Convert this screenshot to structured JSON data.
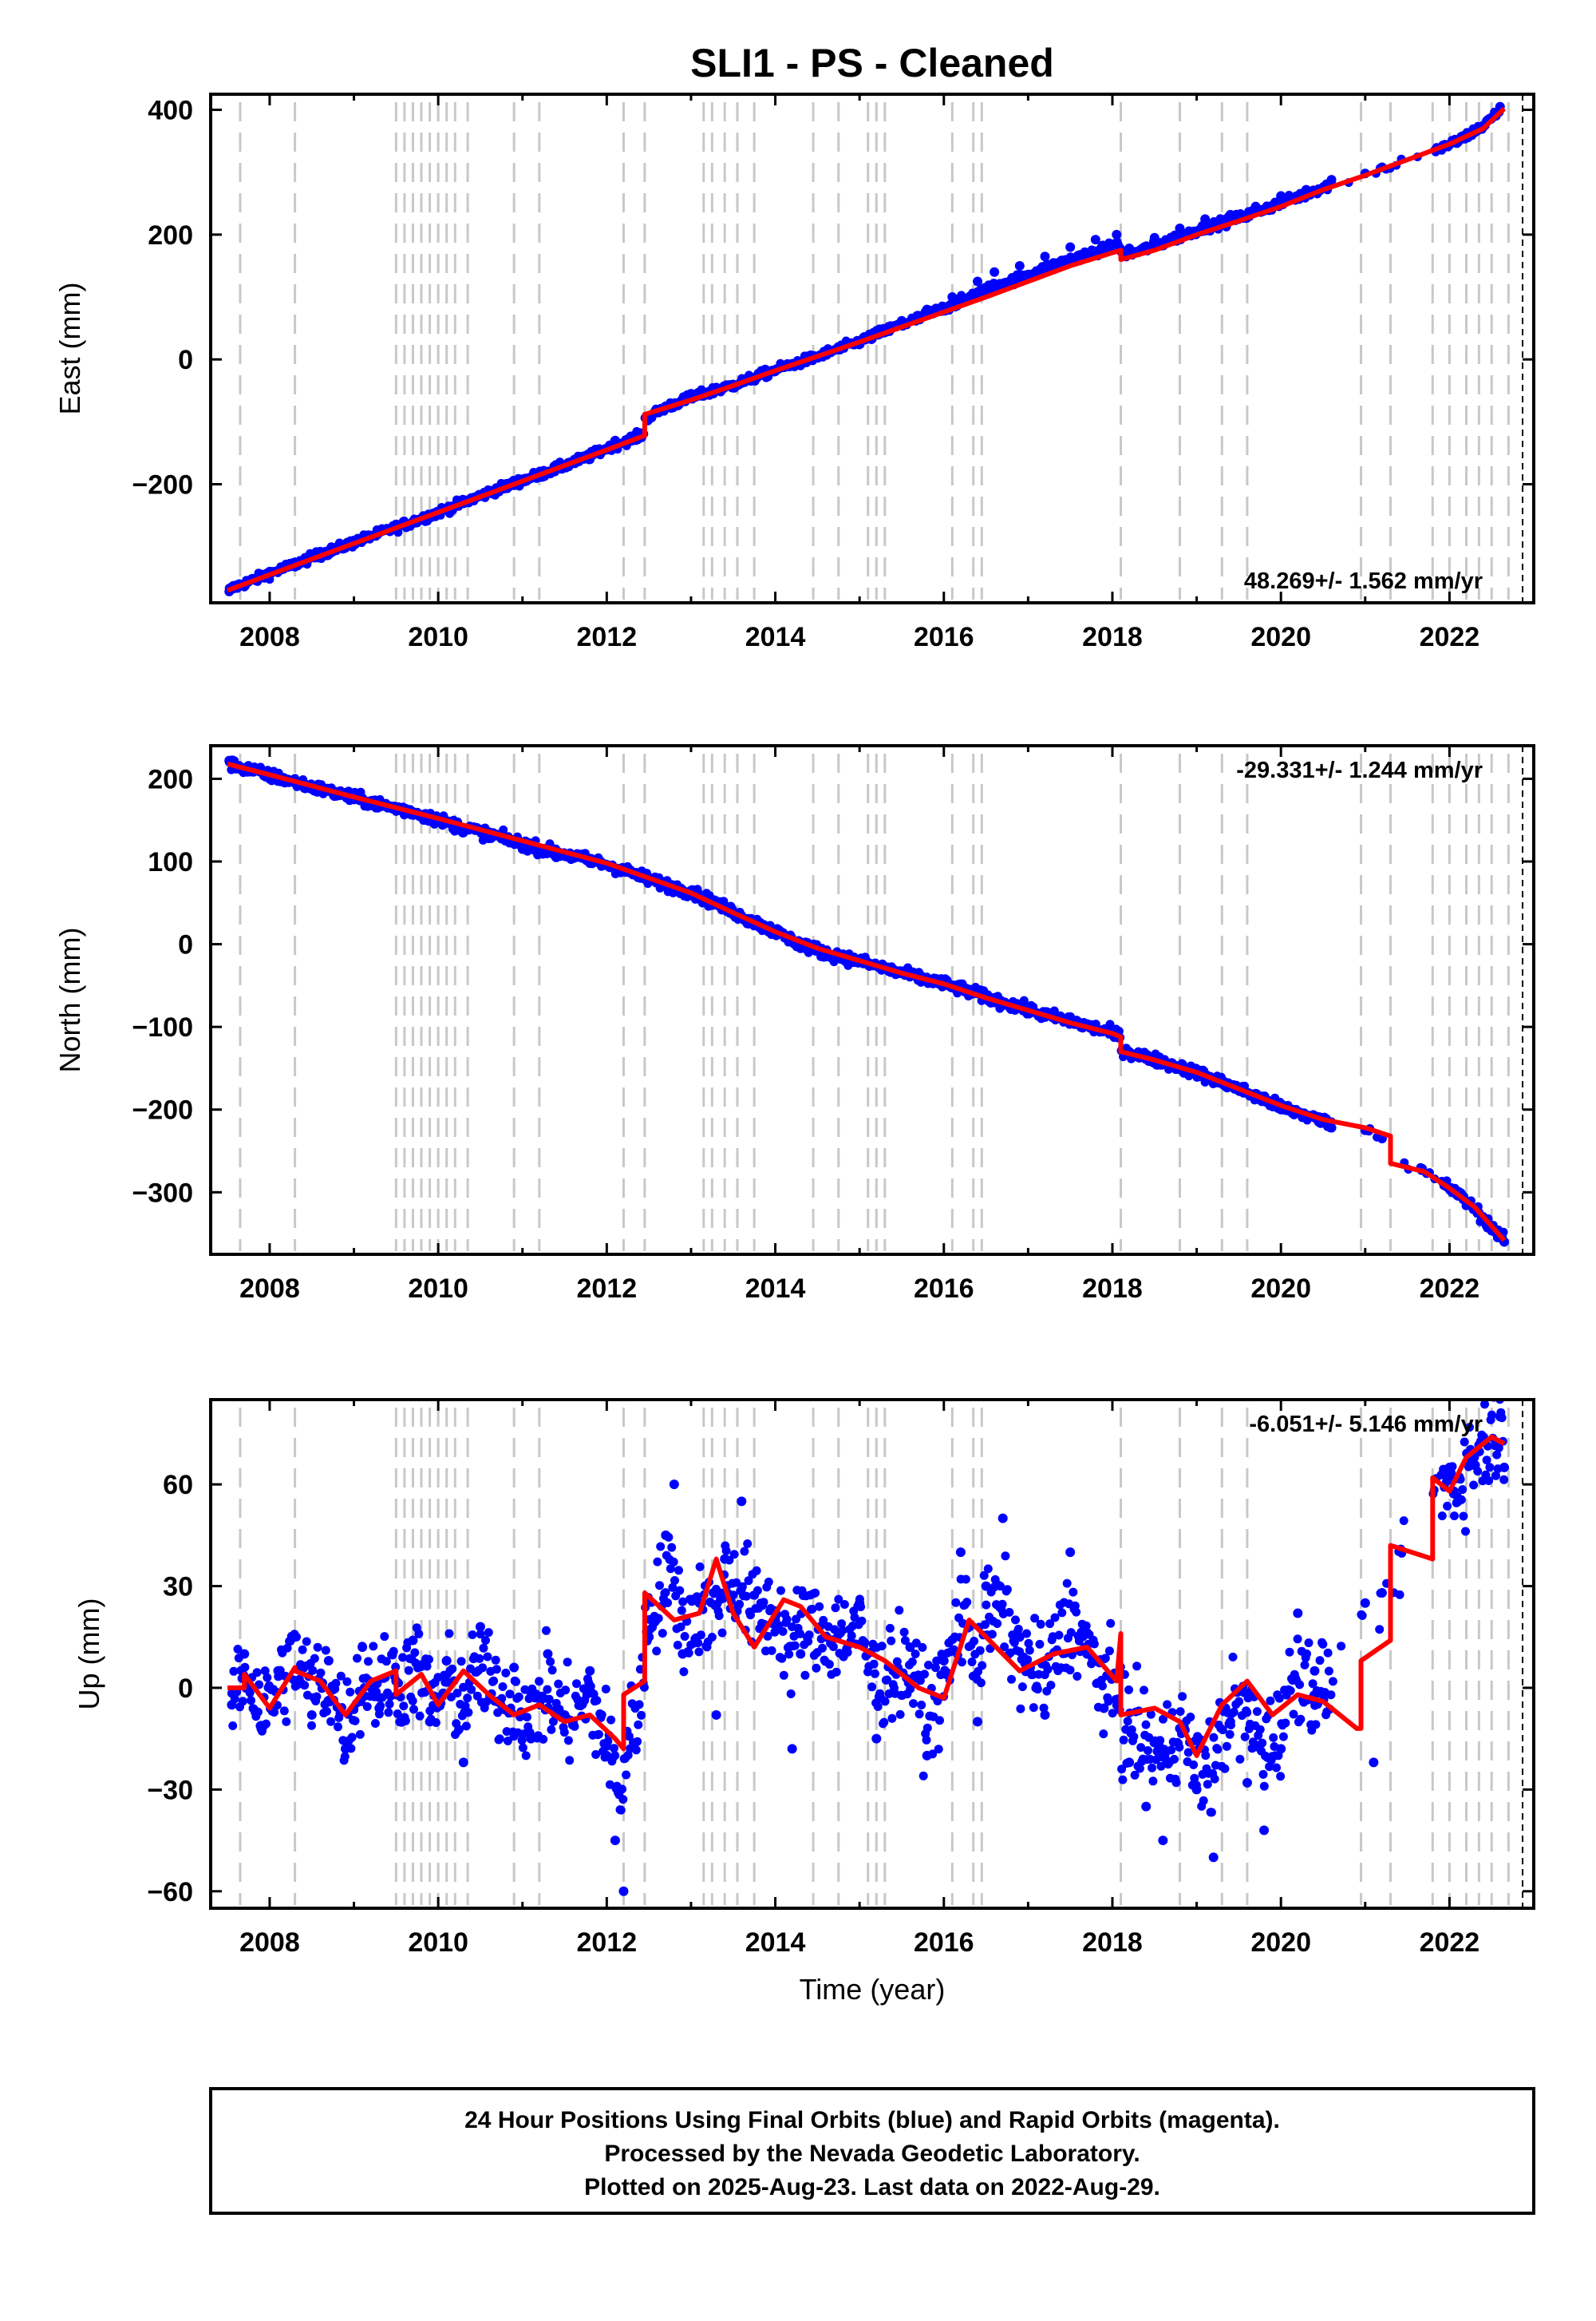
{
  "title": "SLI1  - PS - Cleaned",
  "footer": {
    "line1": "24 Hour Positions Using Final Orbits (blue) and Rapid Orbits (magenta).",
    "line2": "Processed by the Nevada Geodetic Laboratory.",
    "line3": "Plotted on 2025-Aug-23. Last data on 2022-Aug-29."
  },
  "colors": {
    "observations": "#0000ff",
    "model": "#ff0000",
    "event_lines": "#c8c8c8",
    "frame": "#000000"
  },
  "chart_data": [
    {
      "type": "scatter",
      "component": "east",
      "ylabel": "East (mm)",
      "xlabel": "",
      "rate_label": "48.269+/- 1.562 mm/yr",
      "xlim": [
        2007.3,
        2023.0
      ],
      "ylim": [
        -390,
        425
      ],
      "xticks": [
        2008,
        2010,
        2012,
        2014,
        2016,
        2018,
        2020,
        2022
      ],
      "yticks": [
        -200,
        0,
        200,
        400
      ],
      "ytick_labels": [
        "−200",
        "0",
        "200",
        "400"
      ],
      "event_lines": [
        2007.65,
        2008.3,
        2009.5,
        2009.6,
        2009.7,
        2009.8,
        2009.9,
        2010.0,
        2010.1,
        2010.2,
        2010.35,
        2010.9,
        2011.2,
        2012.2,
        2012.45,
        2013.15,
        2013.25,
        2013.4,
        2013.55,
        2013.75,
        2014.45,
        2014.75,
        2015.1,
        2015.2,
        2015.3,
        2016.1,
        2016.35,
        2016.45,
        2018.1,
        2018.8,
        2019.3,
        2019.6,
        2020.95,
        2021.3,
        2021.8,
        2022.0,
        2022.2,
        2022.35,
        2022.5,
        2022.7
      ],
      "series": [
        {
          "role": "observations",
          "x": [
            2007.52,
            2007.6,
            2007.8,
            2008.0,
            2008.3,
            2008.6,
            2009.0,
            2009.4,
            2009.7,
            2010.0,
            2010.3,
            2010.6,
            2011.0,
            2011.4,
            2011.8,
            2012.1,
            2012.4,
            2012.7,
            2013.0,
            2013.3,
            2013.5,
            2013.8,
            2014.1,
            2014.4,
            2014.7,
            2015.0,
            2015.2,
            2015.5,
            2015.8,
            2016.1,
            2016.4,
            2016.6,
            2016.9,
            2017.2,
            2017.5,
            2017.8,
            2018.05,
            2018.2,
            2018.5,
            2018.8,
            2019.1,
            2019.4,
            2019.7,
            2020.0,
            2020.3,
            2020.6,
            2021.0,
            2021.2,
            2021.9,
            2022.1,
            2022.6
          ],
          "y": [
            -372,
            -362,
            -352,
            -340,
            -325,
            -308,
            -290,
            -272,
            -260,
            -245,
            -228,
            -210,
            -192,
            -175,
            -155,
            -130,
            -118,
            -75,
            -55,
            -45,
            -40,
            -25,
            -10,
            0,
            15,
            30,
            45,
            62,
            80,
            100,
            125,
            140,
            150,
            165,
            180,
            192,
            200,
            178,
            195,
            210,
            225,
            232,
            245,
            262,
            272,
            288,
            298,
            308,
            338,
            348,
            405
          ]
        },
        {
          "role": "model",
          "x": [
            2007.5,
            2008.0,
            2009.0,
            2010.0,
            2011.0,
            2012.0,
            2012.45,
            2012.45,
            2013.0,
            2013.5,
            2014.0,
            2014.5,
            2015.0,
            2015.5,
            2016.0,
            2016.5,
            2017.0,
            2017.5,
            2018.1,
            2018.1,
            2018.5,
            2019.0,
            2019.5,
            2020.0,
            2020.5,
            2021.0,
            2021.5,
            2022.0,
            2022.4,
            2022.65
          ],
          "y": [
            -370,
            -345,
            -295,
            -245,
            -195,
            -145,
            -122,
            -88,
            -65,
            -42,
            -18,
            5,
            28,
            52,
            76,
            100,
            125,
            150,
            175,
            160,
            175,
            200,
            222,
            245,
            272,
            295,
            320,
            345,
            370,
            402
          ]
        }
      ]
    },
    {
      "type": "scatter",
      "component": "north",
      "ylabel": "North (mm)",
      "xlabel": "",
      "rate_label": "-29.331+/- 1.244 mm/yr",
      "xlim": [
        2007.3,
        2023.0
      ],
      "ylim": [
        -375,
        240
      ],
      "xticks": [
        2008,
        2010,
        2012,
        2014,
        2016,
        2018,
        2020,
        2022
      ],
      "yticks": [
        -300,
        -200,
        -100,
        0,
        100,
        200
      ],
      "ytick_labels": [
        "−300",
        "−200",
        "−100",
        "0",
        "100",
        "200"
      ],
      "event_lines": [
        2007.65,
        2008.3,
        2009.5,
        2009.6,
        2009.7,
        2009.8,
        2009.9,
        2010.0,
        2010.1,
        2010.2,
        2010.35,
        2010.9,
        2011.2,
        2012.2,
        2012.45,
        2013.15,
        2013.25,
        2013.4,
        2013.55,
        2013.75,
        2014.45,
        2014.75,
        2015.1,
        2015.2,
        2015.3,
        2016.1,
        2016.35,
        2016.45,
        2018.1,
        2018.8,
        2019.3,
        2019.6,
        2020.95,
        2021.3,
        2021.8,
        2022.0,
        2022.2,
        2022.35,
        2022.5,
        2022.7
      ],
      "series": [
        {
          "role": "observations",
          "x": [
            2007.52,
            2007.6,
            2007.8,
            2008.0,
            2008.3,
            2008.6,
            2009.0,
            2009.4,
            2009.7,
            2010.0,
            2010.3,
            2010.6,
            2011.0,
            2011.4,
            2011.8,
            2012.1,
            2012.4,
            2012.7,
            2013.0,
            2013.3,
            2013.5,
            2013.8,
            2014.0,
            2014.3,
            2014.6,
            2015.0,
            2015.3,
            2015.6,
            2016.0,
            2016.3,
            2016.6,
            2016.9,
            2017.2,
            2017.5,
            2017.8,
            2018.05,
            2018.2,
            2018.5,
            2018.8,
            2019.1,
            2019.4,
            2019.7,
            2020.0,
            2020.3,
            2020.6,
            2021.0,
            2021.2,
            2022.1,
            2022.65
          ],
          "y": [
            222,
            215,
            210,
            202,
            195,
            185,
            175,
            165,
            160,
            148,
            135,
            128,
            115,
            105,
            98,
            90,
            80,
            70,
            65,
            52,
            40,
            25,
            15,
            -5,
            -15,
            -22,
            -30,
            -38,
            -48,
            -55,
            -65,
            -75,
            -85,
            -88,
            -100,
            -108,
            -130,
            -138,
            -148,
            -160,
            -170,
            -185,
            -200,
            -210,
            -222,
            -225,
            -235,
            -302,
            -360
          ]
        },
        {
          "role": "model",
          "x": [
            2007.5,
            2008.0,
            2009.0,
            2010.0,
            2011.0,
            2012.0,
            2012.5,
            2013.0,
            2013.5,
            2014.0,
            2014.5,
            2015.0,
            2015.5,
            2016.0,
            2016.5,
            2017.0,
            2017.5,
            2018.0,
            2018.1,
            2018.1,
            2018.5,
            2019.0,
            2019.5,
            2020.0,
            2020.5,
            2021.0,
            2021.3,
            2021.3,
            2021.7,
            2022.0,
            2022.3,
            2022.65
          ],
          "y": [
            218,
            205,
            178,
            152,
            125,
            98,
            80,
            62,
            38,
            15,
            -5,
            -20,
            -35,
            -48,
            -65,
            -80,
            -95,
            -108,
            -112,
            -130,
            -140,
            -155,
            -175,
            -195,
            -212,
            -222,
            -232,
            -265,
            -275,
            -295,
            -318,
            -358
          ]
        }
      ]
    },
    {
      "type": "scatter",
      "component": "up",
      "ylabel": "Up (mm)",
      "xlabel": "Time (year)",
      "rate_label": "-6.051+/- 5.146 mm/yr",
      "xlim": [
        2007.3,
        2023.0
      ],
      "ylim": [
        -65,
        85
      ],
      "xticks": [
        2008,
        2010,
        2012,
        2014,
        2016,
        2018,
        2020,
        2022
      ],
      "yticks": [
        -60,
        -30,
        0,
        30,
        60
      ],
      "ytick_labels": [
        "−60",
        "−30",
        "0",
        "30",
        "60"
      ],
      "event_lines": [
        2007.65,
        2008.3,
        2009.5,
        2009.6,
        2009.7,
        2009.8,
        2009.9,
        2010.0,
        2010.1,
        2010.2,
        2010.35,
        2010.9,
        2011.2,
        2012.2,
        2012.45,
        2013.15,
        2013.25,
        2013.4,
        2013.55,
        2013.75,
        2014.45,
        2014.75,
        2015.1,
        2015.2,
        2015.3,
        2016.1,
        2016.35,
        2016.45,
        2018.1,
        2018.8,
        2019.3,
        2019.6,
        2020.95,
        2021.3,
        2021.8,
        2022.0,
        2022.2,
        2022.35,
        2022.5,
        2022.7
      ],
      "series": [
        {
          "role": "observations",
          "x": [
            2007.55,
            2007.7,
            2007.9,
            2008.1,
            2008.3,
            2008.5,
            2008.7,
            2008.9,
            2009.1,
            2009.3,
            2009.5,
            2009.7,
            2009.9,
            2010.1,
            2010.3,
            2010.5,
            2010.7,
            2010.9,
            2011.1,
            2011.3,
            2011.5,
            2011.8,
            2012.0,
            2012.1,
            2012.2,
            2012.5,
            2012.7,
            2012.8,
            2012.9,
            2013.1,
            2013.3,
            2013.4,
            2013.6,
            2014.0,
            2014.2,
            2014.3,
            2015.0,
            2015.2,
            2015.4,
            2015.6,
            2015.8,
            2016.0,
            2016.2,
            2016.4,
            2016.5,
            2016.7,
            2016.9,
            2017.2,
            2017.5,
            2017.7,
            2017.9,
            2018.2,
            2018.4,
            2018.6,
            2018.8,
            2019.0,
            2019.2,
            2019.4,
            2019.6,
            2019.8,
            2020.0,
            2020.2,
            2020.4,
            2021.0,
            2021.1,
            2021.2,
            2022.0,
            2022.05,
            2022.1,
            2022.6,
            2022.65
          ],
          "y": [
            -5,
            10,
            -12,
            5,
            15,
            -8,
            8,
            -18,
            12,
            -6,
            2,
            14,
            -10,
            8,
            -22,
            18,
            -4,
            6,
            -15,
            10,
            -8,
            5,
            -20,
            -45,
            -60,
            15,
            45,
            60,
            10,
            25,
            -8,
            38,
            55,
            20,
            -18,
            10,
            25,
            -15,
            5,
            12,
            -20,
            8,
            40,
            -10,
            30,
            50,
            15,
            -8,
            40,
            10,
            -6,
            -22,
            -35,
            -45,
            -12,
            -30,
            -50,
            -10,
            -28,
            -42,
            -18,
            22,
            5,
            25,
            -22,
            28,
            65,
            58,
            55,
            80,
            65
          ]
        },
        {
          "role": "model",
          "x": [
            2007.5,
            2007.7,
            2007.7,
            2008.0,
            2008.3,
            2008.3,
            2008.6,
            2008.9,
            2009.2,
            2009.5,
            2009.5,
            2009.8,
            2010.0,
            2010.3,
            2010.6,
            2010.9,
            2011.2,
            2011.5,
            2011.8,
            2012.1,
            2012.2,
            2012.2,
            2012.45,
            2012.45,
            2012.8,
            2013.1,
            2013.3,
            2013.5,
            2013.75,
            2014.1,
            2014.3,
            2014.6,
            2015.0,
            2015.3,
            2015.7,
            2016.0,
            2016.3,
            2016.5,
            2016.9,
            2017.3,
            2017.7,
            2018.05,
            2018.1,
            2018.1,
            2018.5,
            2018.8,
            2019.0,
            2019.3,
            2019.6,
            2019.9,
            2020.2,
            2020.5,
            2020.9,
            2020.95,
            2020.95,
            2021.3,
            2021.3,
            2021.8,
            2021.8,
            2022.0,
            2022.2,
            2022.5,
            2022.65
          ],
          "y": [
            0,
            0,
            4,
            -6,
            6,
            5,
            2,
            -8,
            2,
            5,
            -2,
            4,
            -5,
            5,
            -2,
            -8,
            -5,
            -10,
            -8,
            -15,
            -18,
            -2,
            2,
            28,
            20,
            22,
            38,
            22,
            12,
            26,
            24,
            15,
            12,
            8,
            0,
            -3,
            20,
            15,
            5,
            10,
            12,
            2,
            16,
            -8,
            -6,
            -10,
            -20,
            -5,
            2,
            -8,
            -2,
            -4,
            -12,
            -12,
            8,
            14,
            42,
            38,
            62,
            58,
            68,
            74,
            72
          ]
        }
      ]
    }
  ]
}
